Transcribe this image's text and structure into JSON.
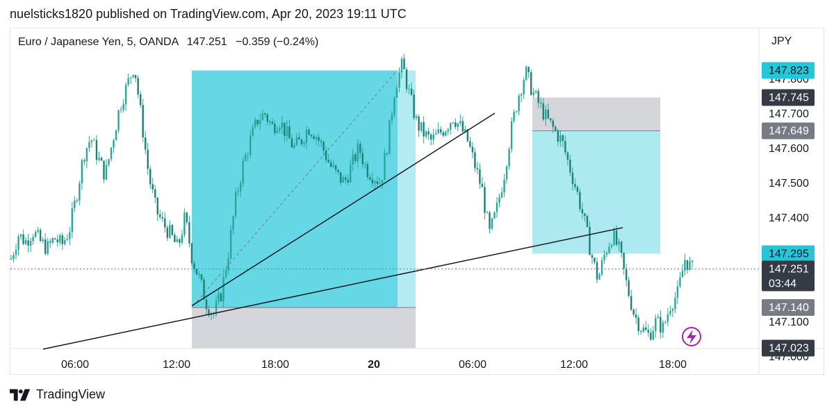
{
  "header": {
    "text": "nuelsticks1820 published on TradingView.com, Apr 20, 2023 19:11 UTC"
  },
  "legend": {
    "symbol": "Euro / Japanese Yen, 5, OANDA",
    "price": "147.251",
    "change": "−0.359 (−0.24%)"
  },
  "footer": {
    "brand": "TradingView"
  },
  "icons": {
    "footer_logo": "tradingview-logo-icon",
    "alert": "lightning-icon"
  },
  "colors": {
    "candle": "#26a69a",
    "position_box": "#26c6da",
    "target_label": "#26c6da",
    "stop_label": "#787b86",
    "price_label": "#363a45",
    "alert": "#9c27b0"
  },
  "chart_data": {
    "type": "candlestick",
    "currency": "JPY",
    "y_ticks": [
      "147.800",
      "147.700",
      "147.600",
      "147.500",
      "147.400",
      "147.100",
      "147.000"
    ],
    "x_ticks": [
      "06:00",
      "12:00",
      "18:00",
      "20",
      "06:00",
      "12:00",
      "18:00"
    ],
    "price_labels": [
      {
        "value": "147.823",
        "kind": "target"
      },
      {
        "value": "147.745",
        "kind": "last"
      },
      {
        "value": "147.649",
        "kind": "stop"
      },
      {
        "value": "147.295",
        "kind": "target"
      },
      {
        "value": "147.251",
        "kind": "last",
        "sub": "03:44"
      },
      {
        "value": "147.140",
        "kind": "stop"
      },
      {
        "value": "147.023",
        "kind": "last"
      }
    ],
    "current_price": 147.251,
    "y_range": [
      147.0,
      147.85
    ],
    "long_position": {
      "entry": 147.14,
      "target": 147.823,
      "stop": 147.023
    },
    "short_position": {
      "entry": 147.649,
      "target": 147.295,
      "stop": 147.745
    },
    "trendlines": [
      {
        "from_price": 147.145,
        "to_price": 147.7
      },
      {
        "from_price": 147.03,
        "to_price": 147.355
      }
    ],
    "price_path": [
      147.28,
      147.35,
      147.33,
      147.36,
      147.33,
      147.31,
      147.34,
      147.32,
      147.36,
      147.46,
      147.58,
      147.63,
      147.57,
      147.52,
      147.62,
      147.72,
      147.78,
      147.84,
      147.68,
      147.52,
      147.42,
      147.38,
      147.35,
      147.31,
      147.4,
      147.28,
      147.22,
      147.15,
      147.12,
      147.18,
      147.3,
      147.45,
      147.55,
      147.62,
      147.68,
      147.7,
      147.66,
      147.68,
      147.64,
      147.6,
      147.62,
      147.66,
      147.64,
      147.6,
      147.55,
      147.52,
      147.5,
      147.55,
      147.6,
      147.54,
      147.52,
      147.5,
      147.62,
      147.78,
      147.84,
      147.75,
      147.67,
      147.64,
      147.62,
      147.64,
      147.66,
      147.69,
      147.66,
      147.62,
      147.55,
      147.48,
      147.35,
      147.42,
      147.52,
      147.65,
      147.75,
      147.82,
      147.76,
      147.72,
      147.68,
      147.65,
      147.62,
      147.55,
      147.48,
      147.4,
      147.3,
      147.22,
      147.3,
      147.35,
      147.3,
      147.2,
      147.12,
      147.08,
      147.06,
      147.1,
      147.08,
      147.15,
      147.18,
      147.28,
      147.25
    ]
  }
}
